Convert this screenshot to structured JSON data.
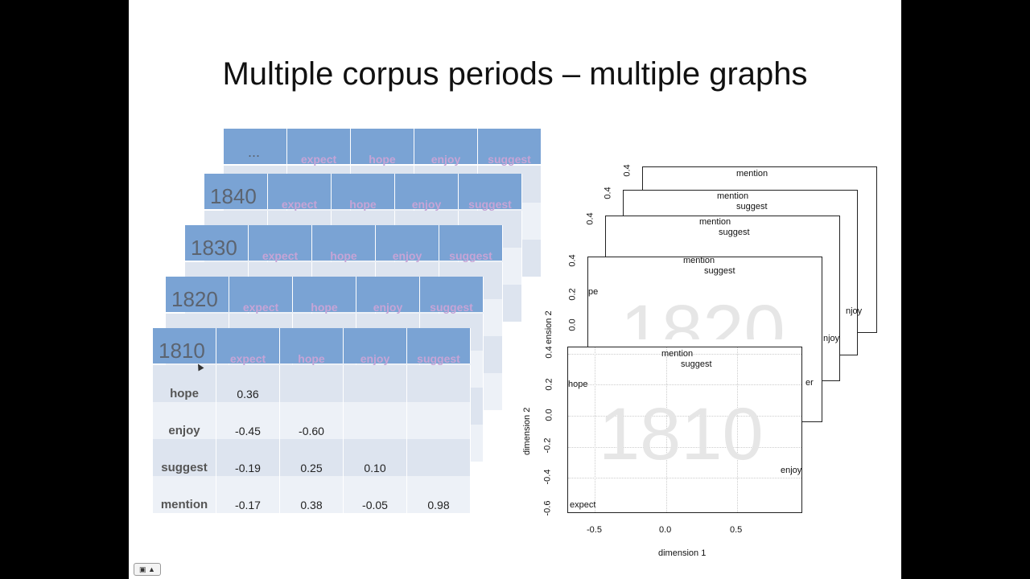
{
  "slide": {
    "title": "Multiple corpus periods – multiple graphs"
  },
  "tables": [
    {
      "period": "...",
      "cols": [
        "expect",
        "hope",
        "enjoy",
        "suggest"
      ]
    },
    {
      "period": "1840",
      "cols": [
        "expect",
        "hope",
        "enjoy",
        "suggest"
      ]
    },
    {
      "period": "1830",
      "cols": [
        "expect",
        "hope",
        "enjoy",
        "suggest"
      ]
    },
    {
      "period": "1820",
      "cols": [
        "expect",
        "hope",
        "enjoy",
        "suggest"
      ]
    },
    {
      "period": "1810",
      "cols": [
        "expect",
        "hope",
        "enjoy",
        "suggest"
      ]
    }
  ],
  "main_table": {
    "rows": [
      {
        "label": "hope",
        "values": [
          "0.36",
          "",
          "",
          ""
        ]
      },
      {
        "label": "enjoy",
        "values": [
          "-0.45",
          "-0.60",
          "",
          ""
        ]
      },
      {
        "label": "suggest",
        "values": [
          "-0.19",
          "0.25",
          "0.10",
          ""
        ]
      },
      {
        "label": "mention",
        "values": [
          "-0.17",
          "0.38",
          "-0.05",
          "0.98"
        ]
      }
    ]
  },
  "plots": {
    "back_labels": {
      "mention": "mention",
      "suggest": "suggest",
      "enjoy": "enjoy",
      "hope": "pe",
      "y04": "0.4",
      "y02": "0.2",
      "y00": "0.0",
      "dim2": "dimension 2"
    },
    "front": {
      "watermark": "1810",
      "back_watermark": "1820",
      "xlabel": "dimension 1",
      "ylabel": "dimension 2",
      "xticks": [
        "-0.5",
        "0.0",
        "0.5"
      ],
      "yticks": [
        "0.4",
        "0.2",
        "0.0",
        "-0.2",
        "-0.4",
        "-0.6"
      ],
      "points": {
        "mention": "mention",
        "suggest": "suggest",
        "hope": "hope",
        "enjoy": "enjoy",
        "expect": "expect"
      }
    },
    "partial": {
      "enjoy_cut": "njoy",
      "e_cut": "er",
      "ension": "ension 2"
    }
  },
  "controls": {
    "slide_button": "▣ ▲"
  }
}
